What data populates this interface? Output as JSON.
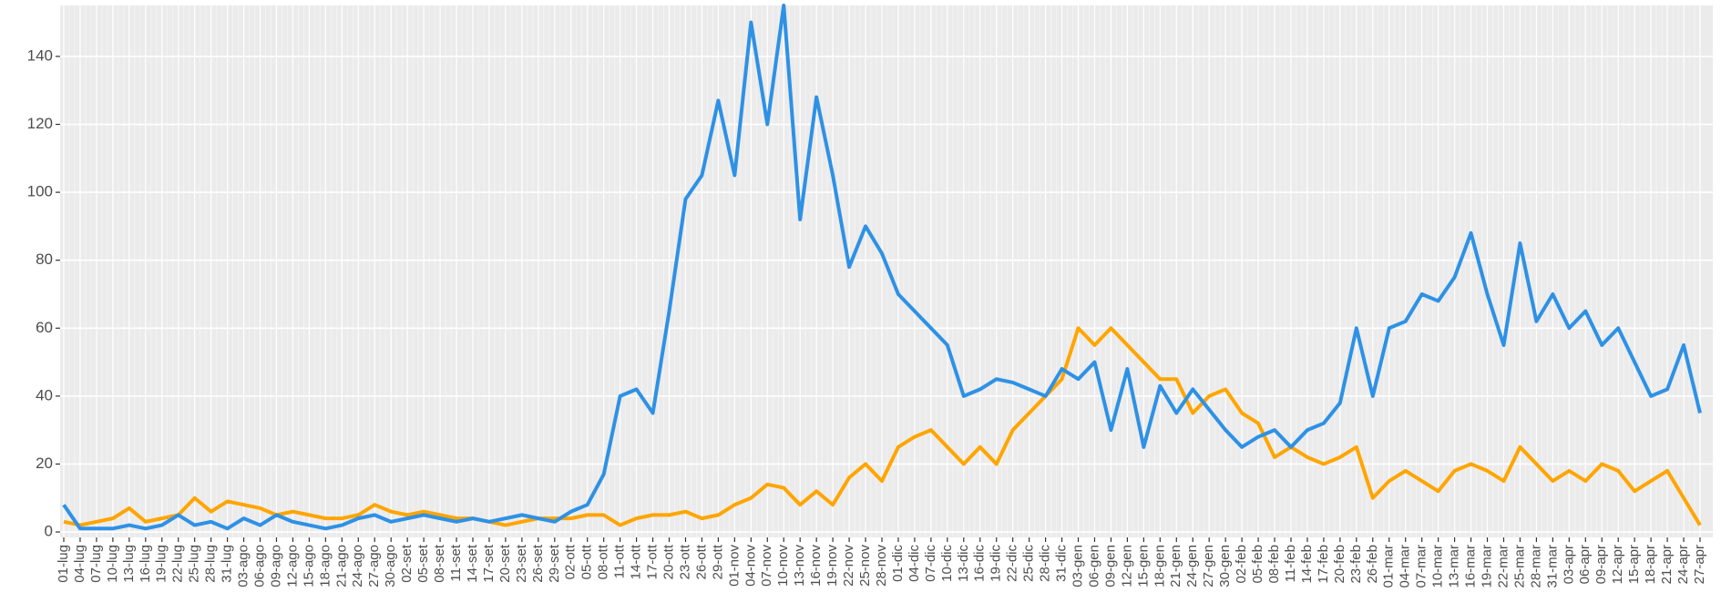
{
  "chart_data": {
    "type": "line",
    "categories": [
      "01-lug",
      "04-lug",
      "07-lug",
      "10-lug",
      "13-lug",
      "16-lug",
      "19-lug",
      "22-lug",
      "25-lug",
      "28-lug",
      "31-lug",
      "03-ago",
      "06-ago",
      "09-ago",
      "12-ago",
      "15-ago",
      "18-ago",
      "21-ago",
      "24-ago",
      "27-ago",
      "30-ago",
      "02-set",
      "05-set",
      "08-set",
      "11-set",
      "14-set",
      "17-set",
      "20-set",
      "23-set",
      "26-set",
      "29-set",
      "02-ott",
      "05-ott",
      "08-ott",
      "11-ott",
      "14-ott",
      "17-ott",
      "20-ott",
      "23-ott",
      "26-ott",
      "29-ott",
      "01-nov",
      "04-nov",
      "07-nov",
      "10-nov",
      "13-nov",
      "16-nov",
      "19-nov",
      "22-nov",
      "25-nov",
      "28-nov",
      "01-dic",
      "04-dic",
      "07-dic",
      "10-dic",
      "13-dic",
      "16-dic",
      "19-dic",
      "22-dic",
      "25-dic",
      "28-dic",
      "31-dic",
      "03-gen",
      "06-gen",
      "09-gen",
      "12-gen",
      "15-gen",
      "18-gen",
      "21-gen",
      "24-gen",
      "27-gen",
      "30-gen",
      "02-feb",
      "05-feb",
      "08-feb",
      "11-feb",
      "14-feb",
      "17-feb",
      "20-feb",
      "23-feb",
      "26-feb",
      "01-mar",
      "04-mar",
      "07-mar",
      "10-mar",
      "13-mar",
      "16-mar",
      "19-mar",
      "22-mar",
      "25-mar",
      "28-mar",
      "31-mar",
      "03-apr",
      "06-apr",
      "09-apr",
      "12-apr",
      "15-apr",
      "18-apr",
      "21-apr",
      "24-apr",
      "27-apr"
    ],
    "series": [
      {
        "color": "#2e91e5",
        "values": [
          8,
          1,
          1,
          1,
          2,
          1,
          2,
          5,
          2,
          3,
          1,
          4,
          2,
          5,
          3,
          2,
          1,
          2,
          4,
          5,
          3,
          4,
          5,
          4,
          3,
          4,
          3,
          4,
          5,
          4,
          3,
          6,
          8,
          17,
          40,
          42,
          35,
          65,
          98,
          105,
          127,
          105,
          150,
          120,
          155,
          92,
          128,
          105,
          78,
          90,
          82,
          70,
          65,
          60,
          55,
          40,
          42,
          45,
          44,
          42,
          40,
          48,
          45,
          50,
          30,
          48,
          25,
          43,
          35,
          42,
          36,
          30,
          25,
          28,
          30,
          25,
          30,
          32,
          38,
          60,
          40,
          60,
          62,
          70,
          68,
          75,
          88,
          70,
          55,
          85,
          62,
          70,
          60,
          65,
          55,
          60,
          50,
          40,
          42,
          55,
          35
        ]
      },
      {
        "color": "#ffa500",
        "values": [
          3,
          2,
          3,
          4,
          7,
          3,
          4,
          5,
          10,
          6,
          9,
          8,
          7,
          5,
          6,
          5,
          4,
          4,
          5,
          8,
          6,
          5,
          6,
          5,
          4,
          4,
          3,
          2,
          3,
          4,
          4,
          4,
          5,
          5,
          2,
          4,
          5,
          5,
          6,
          4,
          5,
          8,
          10,
          14,
          13,
          8,
          12,
          8,
          16,
          20,
          15,
          25,
          28,
          30,
          25,
          20,
          25,
          20,
          30,
          35,
          40,
          45,
          60,
          55,
          60,
          55,
          50,
          45,
          45,
          35,
          40,
          42,
          35,
          32,
          22,
          25,
          22,
          20,
          22,
          25,
          10,
          15,
          18,
          15,
          12,
          18,
          20,
          18,
          15,
          25,
          20,
          15,
          18,
          15,
          20,
          18,
          12,
          15,
          18,
          10,
          2
        ]
      }
    ],
    "ylim": [
      -1.6,
      155
    ],
    "yticks": [
      0,
      20,
      40,
      60,
      80,
      100,
      120,
      140
    ],
    "grid": true
  }
}
